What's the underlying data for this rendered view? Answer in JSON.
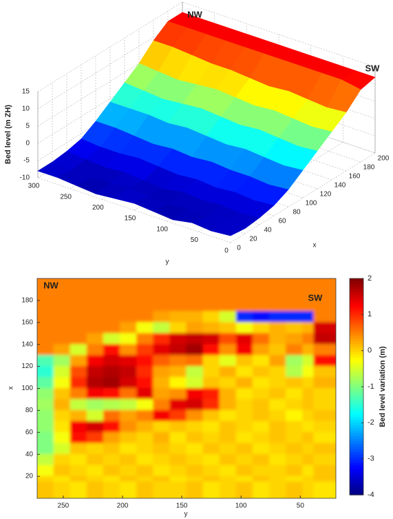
{
  "chart_data": [
    {
      "type": "surface",
      "zlabel": "Bed level (m ZH)",
      "xlabel": "x",
      "ylabel": "y",
      "annotations": [
        "NW",
        "SW"
      ],
      "colormap": "jet",
      "grid": true,
      "xlim": [
        0,
        200
      ],
      "ylim": [
        0,
        300
      ],
      "zlim": [
        -10,
        15
      ],
      "xticks": [
        0,
        20,
        40,
        60,
        80,
        100,
        120,
        140,
        160,
        180,
        200
      ],
      "yticks": [
        0,
        50,
        100,
        150,
        200,
        250,
        300
      ],
      "zticks": [
        -10,
        -5,
        0,
        5,
        10,
        15
      ],
      "x": [
        0,
        20,
        40,
        60,
        80,
        100,
        120,
        140,
        160,
        180,
        200
      ],
      "y": [
        0,
        30,
        60,
        90,
        120,
        150,
        180,
        210,
        240,
        270,
        300
      ],
      "z": [
        [
          -8,
          -8.5,
          -8,
          -9,
          -8.5,
          -8,
          -8.5,
          -9,
          -8.5,
          -8,
          -8
        ],
        [
          -8.5,
          -8,
          -9,
          -8.5,
          -9,
          -8.5,
          -8,
          -8.5,
          -9,
          -8.5,
          -8
        ],
        [
          -8,
          -8.5,
          -8,
          -8.5,
          -8,
          -9,
          -8.5,
          -8,
          -8.5,
          -8,
          -7.5
        ],
        [
          -7,
          -7.5,
          -7,
          -7.5,
          -7,
          -7.5,
          -7,
          -6.5,
          -7,
          -7,
          -6.5
        ],
        [
          -5,
          -5.5,
          -5,
          -5,
          -4.5,
          -5,
          -4.5,
          -5,
          -4.5,
          -4,
          -4
        ],
        [
          -2,
          -2.5,
          -2,
          -1.5,
          -2,
          -1.5,
          -1,
          -1.5,
          -1,
          -1,
          -1
        ],
        [
          1,
          0.5,
          1,
          1.5,
          1,
          1.5,
          2,
          1.5,
          1,
          1.5,
          2
        ],
        [
          4,
          3.5,
          4,
          4.5,
          4,
          4.5,
          5,
          4.5,
          4,
          4.5,
          5
        ],
        [
          7,
          6.5,
          7,
          7.5,
          7,
          7.5,
          8,
          8,
          8.5,
          9,
          9
        ],
        [
          11,
          12,
          12,
          12,
          12,
          12,
          12,
          12,
          12,
          12,
          12
        ],
        [
          12,
          12,
          12,
          12,
          12,
          12,
          12,
          12,
          12,
          12,
          12
        ]
      ]
    },
    {
      "type": "heatmap",
      "xlabel": "y",
      "ylabel": "x",
      "clabel": "Bed level variation (m)",
      "annotations": [
        "NW",
        "SW"
      ],
      "colormap": "jet",
      "xlim": [
        272,
        20
      ],
      "ylim": [
        0,
        200
      ],
      "clim": [
        -4,
        2
      ],
      "xticks": [
        250,
        200,
        150,
        100,
        50
      ],
      "yticks": [
        20,
        40,
        60,
        80,
        100,
        120,
        140,
        160,
        180
      ],
      "cticks": [
        -4,
        -3,
        -2,
        -1,
        0,
        1,
        2
      ],
      "columns": [
        265,
        251,
        237,
        223,
        209,
        195,
        181,
        167,
        153,
        139,
        125,
        111,
        97,
        83,
        69,
        55,
        41,
        27
      ],
      "rows": [
        195,
        185,
        175,
        165,
        155,
        145,
        135,
        125,
        115,
        105,
        95,
        85,
        75,
        65,
        55,
        45,
        35,
        25,
        15,
        5
      ],
      "values": [
        [
          0.5,
          0.5,
          0.5,
          0.5,
          0.5,
          0.5,
          0.5,
          0.5,
          0.5,
          0.5,
          0.5,
          0.5,
          0.5,
          0.5,
          0.5,
          0.5,
          0.5,
          0.5
        ],
        [
          0.5,
          0.5,
          0.5,
          0.5,
          0.5,
          0.5,
          0.5,
          0.5,
          0.5,
          0.5,
          0.5,
          0.5,
          0.5,
          0.5,
          0.5,
          0.5,
          0.5,
          0.5
        ],
        [
          0.5,
          0.5,
          0.5,
          0.5,
          0.5,
          0.5,
          0.5,
          0.5,
          0.5,
          0.5,
          0.5,
          0.5,
          0.5,
          0.5,
          0.5,
          0.5,
          0.5,
          0.5
        ],
        [
          0.5,
          0.5,
          0.5,
          0.5,
          0.5,
          0.5,
          0.5,
          0.3,
          0.2,
          0.2,
          0.0,
          -0.5,
          -3,
          -3.2,
          -3,
          -3,
          -3,
          0.5
        ],
        [
          0.5,
          0.5,
          0.5,
          0.5,
          0.5,
          0.3,
          -0.3,
          -0.6,
          0.0,
          0.3,
          0.2,
          0.1,
          -0.3,
          0.0,
          0.2,
          0.1,
          0.2,
          1.5
        ],
        [
          0.5,
          0.5,
          0.5,
          0.3,
          -0.5,
          -0.3,
          0.5,
          1.0,
          1.5,
          1.6,
          1.5,
          0.8,
          1.4,
          0.6,
          0.2,
          0.3,
          0.5,
          1.6
        ],
        [
          0.5,
          0.3,
          -0.5,
          0.5,
          1.2,
          0.4,
          0.9,
          1.4,
          1.6,
          1.8,
          1.2,
          0.4,
          1.3,
          0.3,
          0.1,
          0.5,
          0.2,
          0.5
        ],
        [
          -1.3,
          -0.8,
          0.3,
          1.3,
          1.5,
          1.4,
          1.2,
          0.7,
          0.5,
          0.6,
          0.0,
          -0.4,
          0.1,
          -0.1,
          0.3,
          -0.8,
          -0.5,
          1.2
        ],
        [
          -1.5,
          -0.5,
          0.8,
          1.6,
          1.7,
          1.6,
          1.0,
          0.3,
          0.2,
          -0.6,
          0.0,
          0.2,
          -0.1,
          0.1,
          0.0,
          -0.7,
          -0.3,
          0.1
        ],
        [
          -1.2,
          -0.3,
          1.0,
          1.7,
          1.8,
          1.5,
          1.2,
          0.2,
          -0.2,
          -0.5,
          0.1,
          0.0,
          0.2,
          -0.1,
          0.0,
          0.1,
          0.0,
          0.2
        ],
        [
          -0.9,
          0.1,
          0.5,
          1.3,
          1.2,
          0.6,
          1.4,
          0.3,
          0.4,
          1.3,
          1.1,
          0.2,
          -0.1,
          0.0,
          0.1,
          -0.1,
          0.1,
          0.0
        ],
        [
          -0.8,
          0.2,
          -0.6,
          -0.8,
          -0.7,
          -0.6,
          -0.3,
          0.5,
          1.4,
          1.5,
          1.0,
          0.2,
          0.0,
          0.1,
          -0.1,
          0.0,
          0.1,
          0.0
        ],
        [
          -0.9,
          0.0,
          0.2,
          -0.5,
          0.6,
          0.3,
          0.5,
          1.3,
          0.9,
          0.4,
          0.1,
          -0.1,
          0.0,
          0.1,
          0.0,
          -0.2,
          0.0,
          0.1
        ],
        [
          -0.9,
          -0.1,
          1.3,
          1.5,
          1.2,
          0.4,
          0.2,
          0.0,
          0.1,
          0.0,
          -0.1,
          0.1,
          0.0,
          -0.1,
          0.1,
          0.0,
          -0.1,
          0.0
        ],
        [
          -1.0,
          -0.3,
          1.2,
          0.9,
          0.3,
          0.1,
          0.0,
          0.2,
          -0.1,
          0.1,
          0.0,
          0.1,
          -0.1,
          0.0,
          0.1,
          0.0,
          0.1,
          -0.1
        ],
        [
          -1.0,
          -0.5,
          0.1,
          0.0,
          0.1,
          -0.1,
          0.0,
          0.1,
          0.0,
          -0.1,
          0.1,
          0.0,
          0.1,
          -0.1,
          0.0,
          0.1,
          0.0,
          0.1
        ],
        [
          -0.6,
          0.0,
          -0.1,
          0.1,
          0.0,
          0.1,
          -0.1,
          0.0,
          0.1,
          0.0,
          -0.1,
          0.1,
          0.0,
          0.1,
          -0.1,
          0.0,
          0.1,
          0.0
        ],
        [
          -0.3,
          0.1,
          0.0,
          -0.1,
          0.1,
          0.0,
          0.1,
          -0.1,
          0.0,
          0.1,
          0.0,
          -0.1,
          0.1,
          0.0,
          0.0,
          0.1,
          -0.1,
          0.1
        ],
        [
          0.0,
          -0.1,
          0.1,
          0.0,
          -0.1,
          0.1,
          0.0,
          0.1,
          -0.1,
          0.0,
          0.1,
          0.0,
          -0.1,
          0.1,
          0.0,
          -0.1,
          0.0,
          0.1
        ],
        [
          0.1,
          0.0,
          -0.1,
          0.1,
          0.0,
          -0.1,
          0.1,
          0.0,
          0.0,
          0.1,
          -0.1,
          0.0,
          0.1,
          -0.1,
          0.0,
          0.1,
          0.0,
          -0.1
        ]
      ]
    }
  ]
}
